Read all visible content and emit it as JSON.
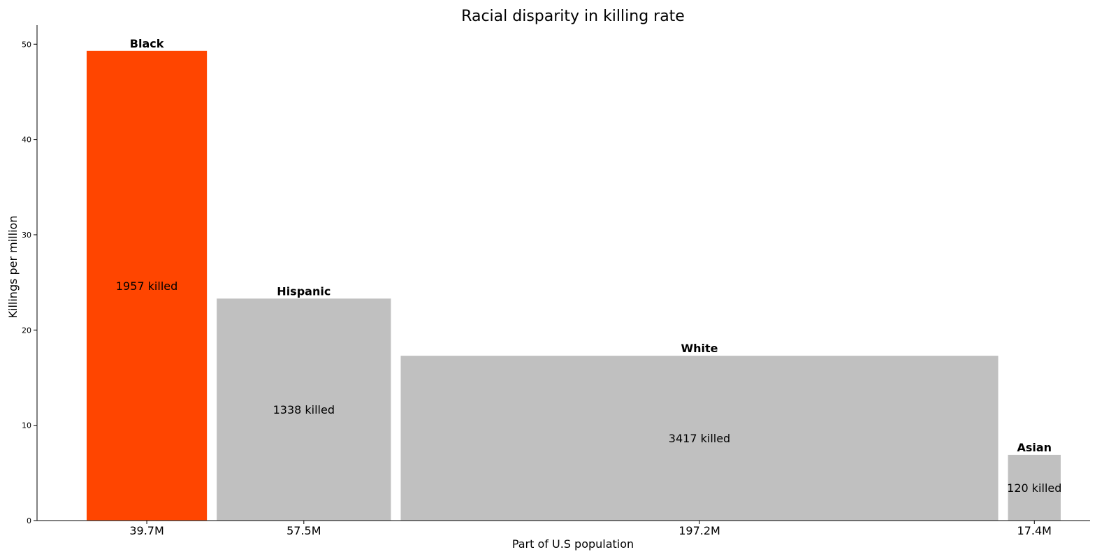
{
  "chart_data": {
    "type": "bar",
    "title": "Racial disparity in killing rate",
    "xlabel": "Part of U.S population",
    "ylabel": "Killings per million",
    "ylim": [
      0,
      52
    ],
    "yticks": [
      0,
      10,
      20,
      30,
      40,
      50
    ],
    "grid": false,
    "bars": [
      {
        "category": "Black",
        "population_millions": 39.7,
        "population_label": "39.7M",
        "killings_per_million": 49.3,
        "killed": 1957,
        "killed_label": "1957 killed",
        "color": "#ff4500"
      },
      {
        "category": "Hispanic",
        "population_millions": 57.5,
        "population_label": "57.5M",
        "killings_per_million": 23.3,
        "killed": 1338,
        "killed_label": "1338 killed",
        "color": "#c0c0c0"
      },
      {
        "category": "White",
        "population_millions": 197.2,
        "population_label": "197.2M",
        "killings_per_million": 17.3,
        "killed": 3417,
        "killed_label": "3417 killed",
        "color": "#c0c0c0"
      },
      {
        "category": "Asian",
        "population_millions": 17.4,
        "population_label": "17.4M",
        "killings_per_million": 6.9,
        "killed": 120,
        "killed_label": "120 killed",
        "color": "#c0c0c0"
      }
    ]
  }
}
